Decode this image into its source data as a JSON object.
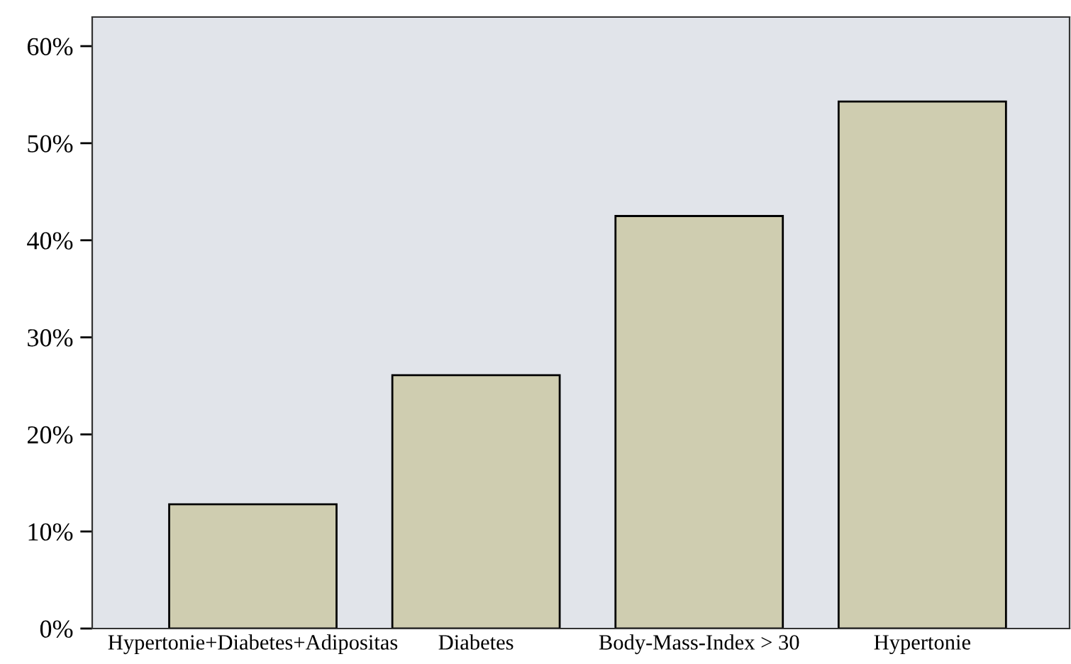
{
  "chart_data": {
    "type": "bar",
    "categories": [
      "Hypertonie+Diabetes+Adipositas",
      "Diabetes",
      "Body-Mass-Index > 30",
      "Hypertonie"
    ],
    "values": [
      12.8,
      26.1,
      42.5,
      54.3
    ],
    "color": "#cfcdb0",
    "ylim": [
      0,
      63
    ],
    "yticks": [
      {
        "value": 0,
        "label": "0%"
      },
      {
        "value": 10,
        "label": "10%"
      },
      {
        "value": 20,
        "label": "20%"
      },
      {
        "value": 30,
        "label": "30%"
      },
      {
        "value": 40,
        "label": "40%"
      },
      {
        "value": 50,
        "label": "50%"
      },
      {
        "value": 60,
        "label": "60%"
      }
    ],
    "grid": false,
    "legend": false
  }
}
